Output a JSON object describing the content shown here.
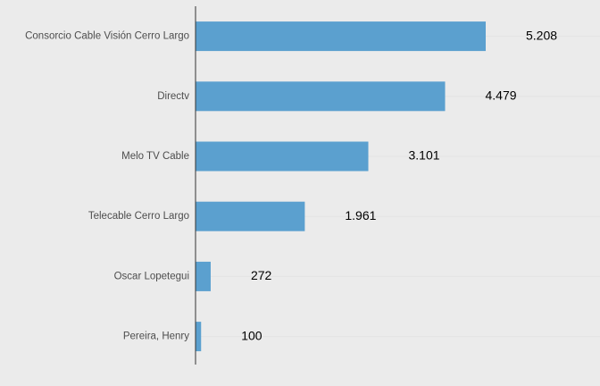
{
  "colors": {
    "background": "#ebebeb",
    "bar": "#5ba0cf",
    "axis": "#333333",
    "gridline": "#e3e3e3"
  },
  "chart_data": {
    "type": "bar",
    "orientation": "horizontal",
    "title": "",
    "xlabel": "",
    "ylabel": "",
    "categories": [
      "Consorcio Cable Visión Cerro Largo",
      "Directv",
      "Melo TV Cable",
      "Telecable Cerro Largo",
      "Oscar Lopetegui",
      "Pereira, Henry"
    ],
    "values": [
      5208,
      4479,
      3101,
      1961,
      272,
      100
    ],
    "value_labels": [
      "5.208",
      "4.479",
      "3.101",
      "1.961",
      "272",
      "100"
    ],
    "xlim": [
      0,
      7000
    ],
    "grid": true,
    "legend": "none"
  }
}
